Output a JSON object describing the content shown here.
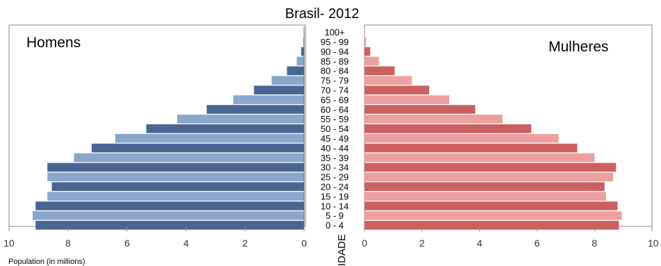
{
  "chart_data": {
    "type": "bar",
    "orientation": "horizontal-pyramid",
    "title": "Brasil- 2012",
    "xlabel": "Population (in millions)",
    "center_axis_label": "IDADE",
    "xlim": [
      0,
      10
    ],
    "x_ticks": [
      "10",
      "8",
      "6",
      "4",
      "2",
      "0"
    ],
    "x_ticks_right": [
      "0",
      "2",
      "4",
      "6",
      "8",
      "10"
    ],
    "categories": [
      "100+",
      "95 - 99",
      "90 - 94",
      "85 - 89",
      "80 - 84",
      "75 - 79",
      "70 - 74",
      "65 - 69",
      "60 - 64",
      "55 - 59",
      "50 - 54",
      "45 - 49",
      "40 - 44",
      "35 - 39",
      "30 - 34",
      "25 - 29",
      "20 - 24",
      "15 - 19",
      "10 - 14",
      "5 - 9",
      "0 - 4"
    ],
    "series": [
      {
        "name": "Homens",
        "side": "left",
        "colors": [
          "#4a6591",
          "#8aa6cc"
        ],
        "values": [
          0.0,
          0.03,
          0.1,
          0.25,
          0.58,
          1.1,
          1.7,
          2.4,
          3.3,
          4.3,
          5.35,
          6.4,
          7.2,
          7.8,
          8.7,
          8.7,
          8.55,
          8.7,
          9.1,
          9.2,
          9.1
        ]
      },
      {
        "name": "Mulheres",
        "side": "right",
        "colors": [
          "#cc6060",
          "#eea0a0"
        ],
        "values": [
          0.0,
          0.05,
          0.2,
          0.5,
          1.05,
          1.65,
          2.25,
          2.95,
          3.85,
          4.8,
          5.8,
          6.75,
          7.4,
          8.0,
          8.75,
          8.65,
          8.35,
          8.4,
          8.8,
          8.95,
          8.85
        ]
      }
    ],
    "grid": false
  }
}
